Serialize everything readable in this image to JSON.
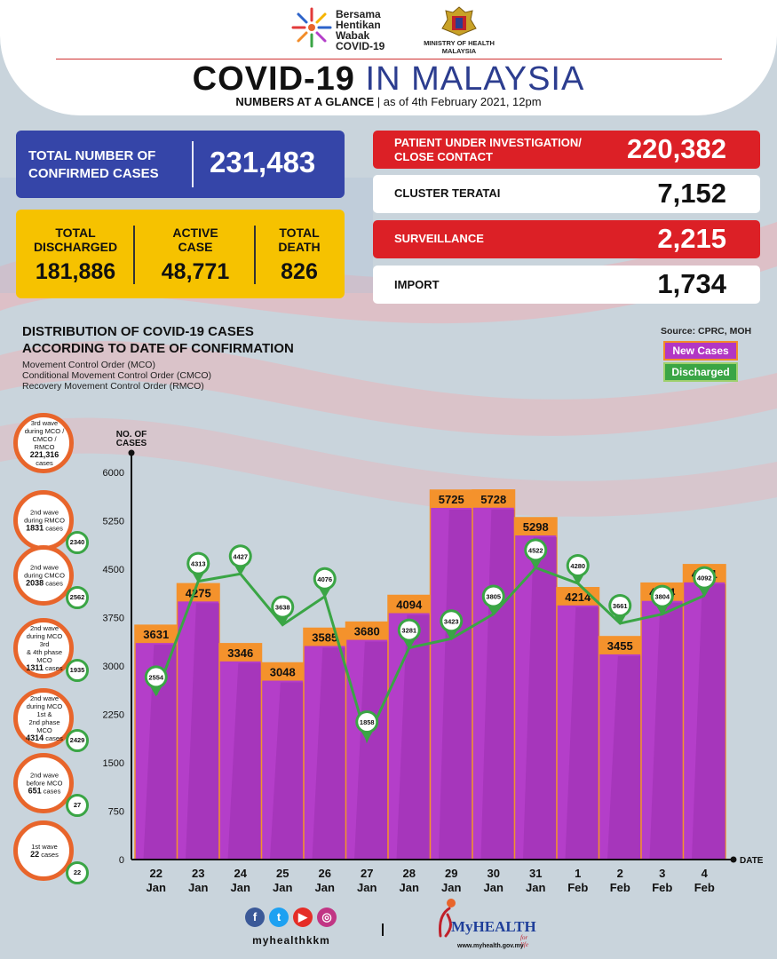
{
  "header": {
    "logo_text": [
      "Bersama",
      "Hentikan",
      "Wabak",
      "COVID-19"
    ],
    "ministry": [
      "MINISTRY OF HEALTH",
      "MALAYSIA"
    ],
    "title_main": "COVID-19",
    "title_accent": "IN MALAYSIA",
    "subtitle_bold": "NUMBERS AT A GLANCE",
    "subtitle_date": "as of 4th February 2021, 12pm"
  },
  "confirmed": {
    "label_1": "TOTAL NUMBER OF",
    "label_2": "CONFIRMED CASES",
    "value": "231,483"
  },
  "summary": [
    {
      "label_1": "TOTAL",
      "label_2": "DISCHARGED",
      "value": "181,886"
    },
    {
      "label_1": "ACTIVE",
      "label_2": "CASE",
      "value": "48,771"
    },
    {
      "label_1": "TOTAL",
      "label_2": "DEATH",
      "value": "826"
    }
  ],
  "categories": [
    {
      "label_1": "PATIENT UNDER INVESTIGATION/",
      "label_2": "CLOSE CONTACT",
      "value": "220,382",
      "style": "red"
    },
    {
      "label_1": "CLUSTER TERATAI",
      "label_2": "",
      "value": "7,152",
      "style": "white"
    },
    {
      "label_1": "SURVEILLANCE",
      "label_2": "",
      "value": "2,215",
      "style": "red"
    },
    {
      "label_1": "IMPORT",
      "label_2": "",
      "value": "1,734",
      "style": "white"
    }
  ],
  "distribution": {
    "title_1": "DISTRIBUTION OF COVID-19 CASES",
    "title_2": "ACCORDING TO DATE OF CONFIRMATION",
    "mco_lines": [
      "Movement Control Order (MCO)",
      "Conditional Movement Control Order (CMCO)",
      "Recovery Movement Control Order (RMCO)"
    ],
    "source": "Source: CPRC, MOH",
    "legend_new": "New Cases",
    "legend_discharged": "Discharged"
  },
  "waves": [
    {
      "lines": [
        "3rd wave",
        "during MCO /",
        "CMCO / RMCO"
      ],
      "count": "221,316",
      "unit": "cases",
      "discharged": ""
    },
    {
      "lines": [
        "2nd wave",
        "during RMCO"
      ],
      "count": "1831",
      "unit": "cases",
      "discharged": "2340"
    },
    {
      "lines": [
        "2nd wave",
        "during CMCO"
      ],
      "count": "2038",
      "unit": "cases",
      "discharged": "2562"
    },
    {
      "lines": [
        "2nd wave",
        "during MCO 3rd",
        "& 4th phase MCO"
      ],
      "count": "1311",
      "unit": "cases",
      "discharged": "1935"
    },
    {
      "lines": [
        "2nd wave",
        "during MCO 1st &",
        "2nd phase MCO"
      ],
      "count": "4314",
      "unit": "cases",
      "discharged": "2429"
    },
    {
      "lines": [
        "2nd wave",
        "before MCO"
      ],
      "count": "651",
      "unit": "cases",
      "discharged": "27"
    },
    {
      "lines": [
        "1st wave"
      ],
      "count": "22",
      "unit": "cases",
      "discharged": "22"
    }
  ],
  "colors": {
    "bar": "#b43ec9",
    "bar_label": "#f4922c",
    "discharged": "#3aa545"
  },
  "footer": {
    "handle": "myhealthkkm",
    "brand": "MyHEALTH",
    "tagline": "for life",
    "url": "www.myhealth.gov.my"
  },
  "chart_data": {
    "type": "bar",
    "ylabel": "NO. OF CASES",
    "xlabel": "DATE",
    "ylim": [
      0,
      6000
    ],
    "yticks": [
      0,
      750,
      1500,
      2250,
      3000,
      3750,
      4500,
      5250,
      6000
    ],
    "categories": [
      [
        "22",
        "Jan"
      ],
      [
        "23",
        "Jan"
      ],
      [
        "24",
        "Jan"
      ],
      [
        "25",
        "Jan"
      ],
      [
        "26",
        "Jan"
      ],
      [
        "27",
        "Jan"
      ],
      [
        "28",
        "Jan"
      ],
      [
        "29",
        "Jan"
      ],
      [
        "30",
        "Jan"
      ],
      [
        "31",
        "Jan"
      ],
      [
        "1",
        "Feb"
      ],
      [
        "2",
        "Feb"
      ],
      [
        "3",
        "Feb"
      ],
      [
        "4",
        "Feb"
      ]
    ],
    "series": [
      {
        "name": "New Cases",
        "type": "bar",
        "values": [
          3631,
          4275,
          3346,
          3048,
          3585,
          3680,
          4094,
          5725,
          5728,
          5298,
          4214,
          3455,
          4284,
          4571
        ]
      },
      {
        "name": "Discharged",
        "type": "line",
        "values": [
          2554,
          4313,
          4427,
          3638,
          4076,
          1858,
          3281,
          3423,
          3805,
          4522,
          4280,
          3661,
          3804,
          4092
        ]
      }
    ]
  }
}
